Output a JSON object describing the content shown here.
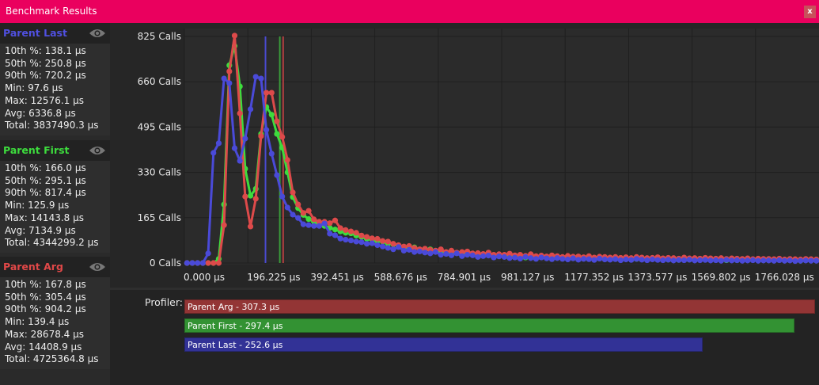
{
  "window": {
    "title": "Benchmark Results",
    "close_label": "x"
  },
  "colors": {
    "titlebar": "#ea005e",
    "parent_last": "#4a4ad8",
    "parent_first": "#3ddc3d",
    "parent_arg": "#dd4a4a"
  },
  "sidebar": {
    "sections": [
      {
        "name": "Parent Last",
        "color": "#5050e0",
        "icon": "eye-icon",
        "stats": [
          "10th %: 138.1 µs",
          "50th %: 250.8 µs",
          "90th %: 720.2 µs",
          "Min: 97.6 µs",
          "Max: 12576.1 µs",
          "Avg: 6336.8 µs",
          "Total: 3837490.3 µs"
        ]
      },
      {
        "name": "Parent First",
        "color": "#3ddc3d",
        "icon": "eye-icon",
        "stats": [
          "10th %: 166.0 µs",
          "50th %: 295.1 µs",
          "90th %: 817.4 µs",
          "Min: 125.9 µs",
          "Max: 14143.8 µs",
          "Avg: 7134.9 µs",
          "Total: 4344299.2 µs"
        ]
      },
      {
        "name": "Parent Arg",
        "color": "#e04848",
        "icon": "eye-icon",
        "stats": [
          "10th %: 167.8 µs",
          "50th %: 305.4 µs",
          "90th %: 904.2 µs",
          "Min: 139.4 µs",
          "Max: 28678.4 µs",
          "Avg: 14408.9 µs",
          "Total: 4725364.8 µs"
        ]
      }
    ]
  },
  "chart_data": {
    "type": "line",
    "xlim": [
      0,
      1962.25
    ],
    "ylim": [
      0,
      825
    ],
    "bin_width_us": 16.352,
    "grid": true,
    "x_ticks": [
      0,
      196.225,
      392.451,
      588.676,
      784.901,
      981.127,
      1177.352,
      1373.577,
      1569.802,
      1766.028
    ],
    "x_tick_labels": [
      "0.000 µs",
      "196.225 µs",
      "392.451 µs",
      "588.676 µs",
      "784.901 µs",
      "981.127 µs",
      "1177.352 µs",
      "1373.577 µs",
      "1569.802 µs",
      "1766.028 µs"
    ],
    "y_ticks": [
      0,
      165,
      330,
      495,
      660,
      825
    ],
    "y_tick_labels": [
      "0 Calls",
      "165 Calls",
      "330 Calls",
      "495 Calls",
      "660 Calls",
      "825 Calls"
    ],
    "median_lines": [
      {
        "series": "Parent Last",
        "x": 250.8
      },
      {
        "series": "Parent First",
        "x": 295.1
      },
      {
        "series": "Parent Arg",
        "x": 305.4
      }
    ],
    "series": [
      {
        "name": "Parent First",
        "color": "#3ddc3d",
        "values": [
          0,
          0,
          0,
          0,
          0,
          0,
          15,
          213,
          720,
          790,
          643,
          343,
          245,
          270,
          470,
          568,
          540,
          470,
          420,
          330,
          240,
          200,
          175,
          160,
          150,
          140,
          135,
          128,
          122,
          115,
          110,
          108,
          100,
          95,
          88,
          85,
          80,
          78,
          70,
          68,
          62,
          58,
          55,
          57,
          48,
          45,
          50,
          42,
          40,
          38,
          30,
          36,
          34,
          32,
          30,
          35,
          28,
          30,
          26,
          27,
          25,
          28,
          22,
          26,
          20,
          24,
          21,
          23,
          18,
          20,
          19,
          21,
          17,
          20,
          16,
          18,
          17,
          15,
          18,
          16,
          15,
          17,
          14,
          16,
          13,
          15,
          14,
          12,
          15,
          13,
          13,
          12,
          14,
          11,
          13,
          12,
          11,
          13,
          12,
          11,
          11,
          12,
          10,
          11,
          10,
          12,
          10,
          11,
          9,
          10,
          10,
          9,
          11,
          9,
          10,
          9,
          8,
          10,
          9,
          9
        ]
      },
      {
        "name": "Parent Arg",
        "color": "#dd4a4a",
        "values": [
          0,
          0,
          0,
          0,
          0,
          0,
          0,
          138,
          698,
          828,
          545,
          242,
          133,
          234,
          462,
          620,
          620,
          516,
          459,
          375,
          257,
          213,
          182,
          190,
          159,
          150,
          150,
          145,
          155,
          127,
          120,
          115,
          110,
          100,
          95,
          90,
          88,
          80,
          78,
          70,
          65,
          60,
          62,
          55,
          50,
          52,
          48,
          45,
          50,
          40,
          45,
          38,
          40,
          42,
          35,
          36,
          33,
          38,
          30,
          32,
          30,
          34,
          28,
          30,
          26,
          32,
          25,
          27,
          24,
          28,
          25,
          22,
          26,
          23,
          24,
          21,
          25,
          20,
          23,
          22,
          20,
          22,
          19,
          21,
          18,
          22,
          20,
          18,
          19,
          21,
          17,
          19,
          18,
          16,
          20,
          17,
          18,
          16,
          19,
          17,
          16,
          18,
          15,
          17,
          16,
          15,
          17,
          14,
          16,
          15,
          15,
          14,
          16,
          13,
          15,
          14,
          13,
          15,
          14,
          13
        ]
      },
      {
        "name": "Parent Last",
        "color": "#4a4ad8",
        "values": [
          0,
          0,
          0,
          0,
          35,
          401,
          436,
          672,
          655,
          418,
          372,
          453,
          560,
          678,
          672,
          485,
          398,
          320,
          242,
          202,
          176,
          164,
          141,
          138,
          135,
          135,
          144,
          107,
          101,
          89,
          85,
          82,
          78,
          76,
          70,
          72,
          65,
          60,
          55,
          50,
          58,
          45,
          48,
          40,
          42,
          38,
          35,
          40,
          30,
          33,
          28,
          35,
          25,
          30,
          28,
          22,
          25,
          27,
          20,
          24,
          22,
          18,
          20,
          16,
          22,
          18,
          15,
          20,
          17,
          14,
          18,
          15,
          13,
          17,
          12,
          15,
          14,
          11,
          16,
          13,
          12,
          14,
          10,
          13,
          11,
          15,
          12,
          10,
          13,
          11,
          10,
          12,
          9,
          11,
          10,
          12,
          9,
          10,
          11,
          9,
          10,
          8,
          11,
          9,
          10,
          8,
          9,
          10,
          8,
          9,
          9,
          8,
          10,
          8,
          9,
          7,
          8,
          9,
          8,
          8
        ]
      }
    ]
  },
  "profiler": {
    "label": "Profiler:",
    "max_value": 307.3,
    "bars": [
      {
        "label": "Parent Arg - 307.3 µs",
        "value": 307.3,
        "color": "#933535"
      },
      {
        "label": "Parent First - 297.4 µs",
        "value": 297.4,
        "color": "#339233"
      },
      {
        "label": "Parent Last - 252.6 µs",
        "value": 252.6,
        "color": "#323296"
      }
    ]
  }
}
